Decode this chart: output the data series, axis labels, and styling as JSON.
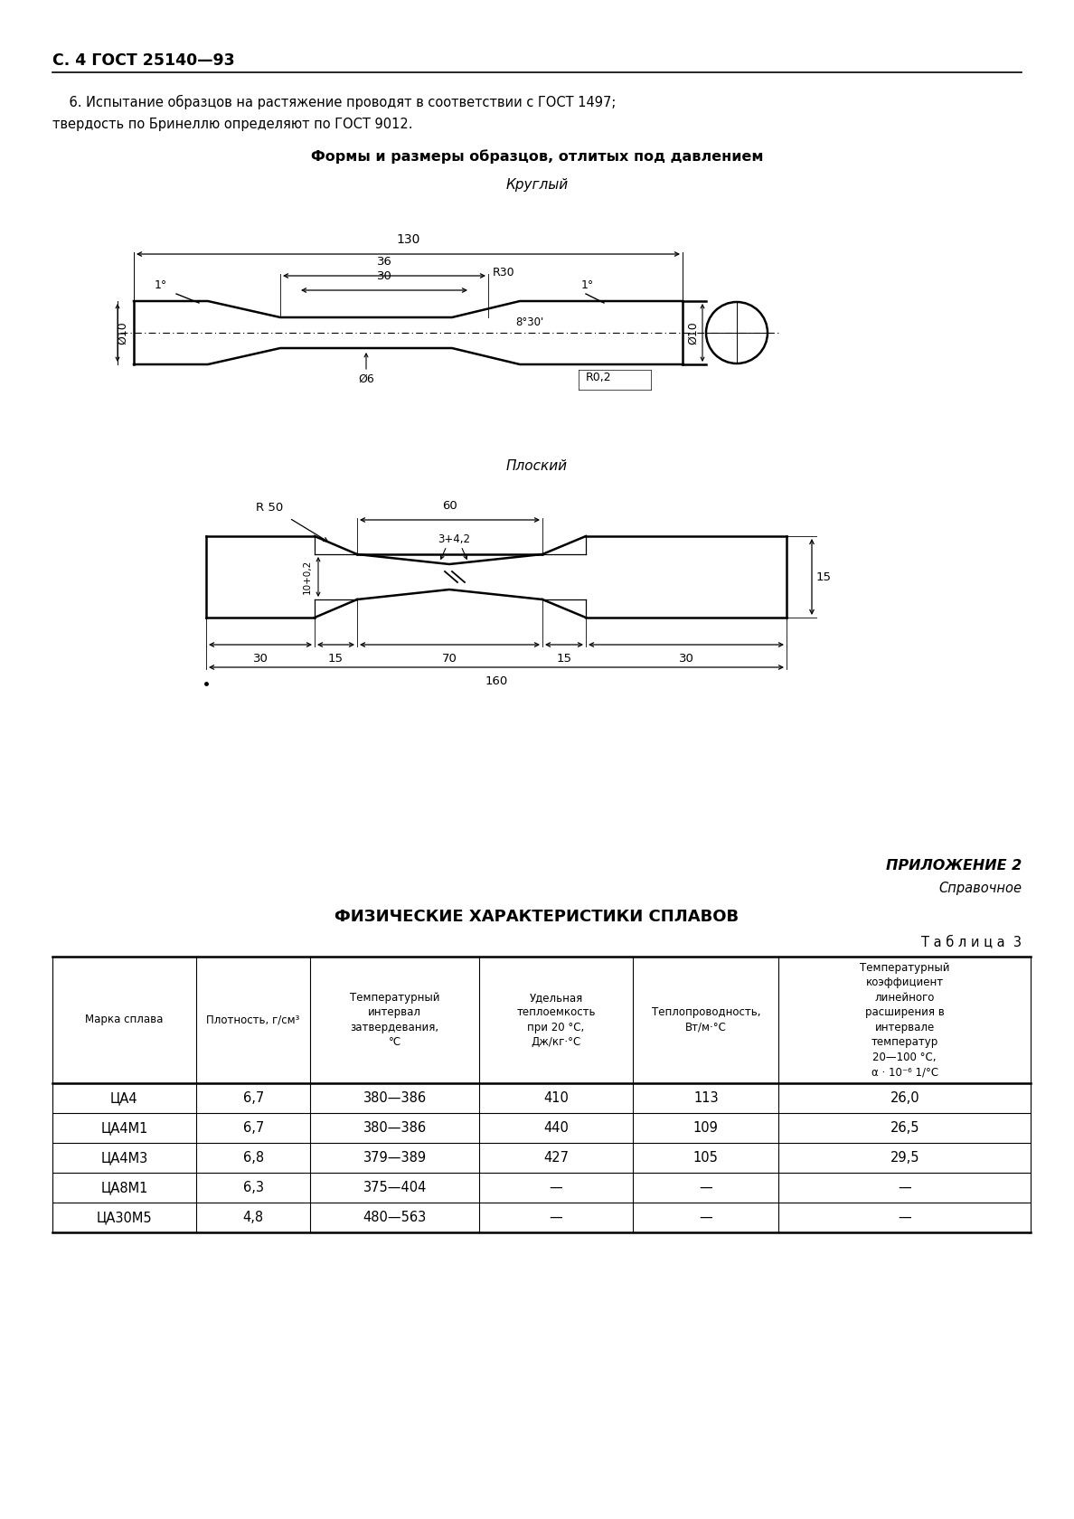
{
  "page_header": "С. 4 ГОСТ 25140—93",
  "paragraph_line1": "    6. Испытание образцов на растяжение проводят в соответствии с ГОСТ 1497;",
  "paragraph_line2": "твердость по Бринеллю определяют по ГОСТ 9012.",
  "section_title": "Формы и размеры образцов, отлитых под давлением",
  "round_label": "Круглый",
  "flat_label": "Плоский",
  "appendix_right": "ПРИЛОЖЕНИЕ 2",
  "appendix_sub": "Справочное",
  "table_title": "ФИЗИЧЕСКИЕ ХАРАКТЕРИСТИКИ СПЛАВОВ",
  "table_label": "Т а б л и ц а  3",
  "col_headers": [
    "Марка сплава",
    "Плотность, г/см³",
    "Температурный\nинтервал\nзатвердевания,\n°С",
    "Удельная\nтеплоемкость\nпри 20 °С,\nДж/кг·°С",
    "Теплопроводность,\nВт/м·°С",
    "Температурный\nкоэффициент\nлинейного\nрасширения в\nинтервале\nтемператур\n20—100 °С,\nα · 10⁻⁶ 1/°С"
  ],
  "table_data": [
    [
      "ЦА4",
      "6,7",
      "380—386",
      "410",
      "113",
      "26,0"
    ],
    [
      "ЦА4М1",
      "6,7",
      "380—386",
      "440",
      "109",
      "26,5"
    ],
    [
      "ЦА4М3",
      "6,8",
      "379—389",
      "427",
      "105",
      "29,5"
    ],
    [
      "ЦА8М1",
      "6,3",
      "375—404",
      "—",
      "—",
      "—"
    ],
    [
      "ЦА30М5",
      "4,8",
      "480—563",
      "—",
      "—",
      "—"
    ]
  ],
  "bg_color": "#ffffff",
  "text_color": "#000000"
}
